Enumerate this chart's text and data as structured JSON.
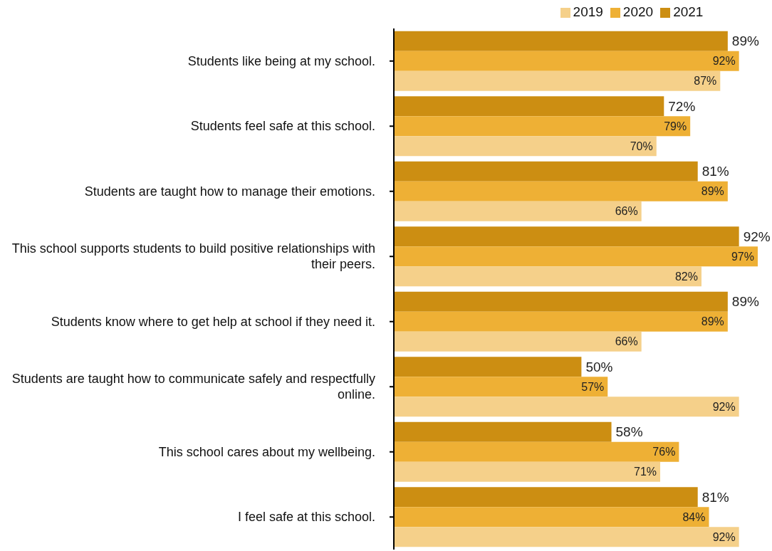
{
  "chart_data": {
    "type": "bar",
    "orientation": "horizontal",
    "legend": "top",
    "categories": [
      "Students like being at my school.",
      "Students feel safe at this school.",
      "Students are taught how to manage their emotions.",
      "This school supports students to build positive relationships with their peers.",
      "Students know where to get help at school if they need it.",
      "Students are taught how to communicate safely and respectfully online.",
      "This school cares about my wellbeing.",
      "I feel safe at this school."
    ],
    "series": [
      {
        "name": "2021",
        "color": "#cc8e12",
        "values": [
          89,
          72,
          81,
          92,
          89,
          50,
          58,
          81
        ],
        "value_labels": [
          "89%",
          "72%",
          "81%",
          "92%",
          "89%",
          "50%",
          "58%",
          "81%"
        ]
      },
      {
        "name": "2020",
        "color": "#eeb035",
        "values": [
          92,
          79,
          89,
          97,
          89,
          57,
          76,
          84
        ],
        "value_labels": [
          "92%",
          "79%",
          "89%",
          "97%",
          "89%",
          "57%",
          "76%",
          "84%"
        ]
      },
      {
        "name": "2019",
        "color": "#f5d08a",
        "values": [
          87,
          70,
          66,
          82,
          66,
          92,
          71,
          92
        ],
        "value_labels": [
          "87%",
          "70%",
          "66%",
          "82%",
          "66%",
          "92%",
          "71%",
          "92%"
        ]
      }
    ]
  }
}
